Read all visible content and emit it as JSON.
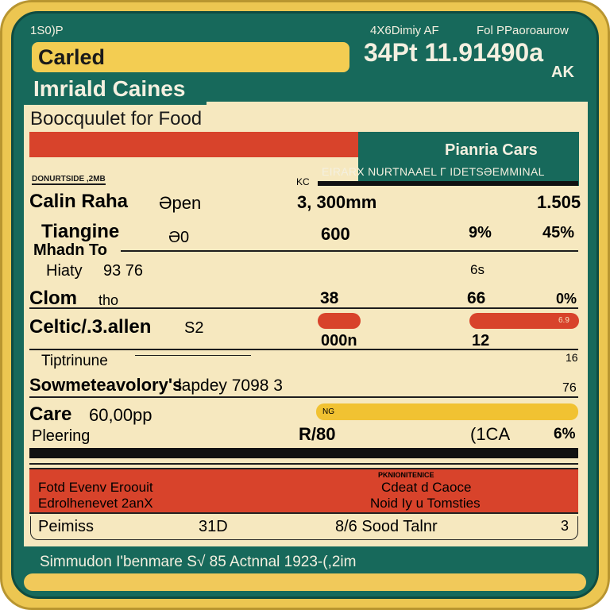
{
  "header": {
    "top_left": "1S0)P",
    "top_mid": "4X6Dimiy AF",
    "top_right": "Fol PPaoroaurow",
    "badge_label": "Carled",
    "big_number": "34Pt 11.91490a",
    "big_unit": "AK",
    "title": "Imriald Caines",
    "subtitle": "Boocquulet for Food"
  },
  "banner": {
    "title": "Pianria Cars",
    "subtitle": "EIRARX NURTNAAEL Γ IDETSƏEMMINAL"
  },
  "small_label": "DONURTSIDE ,2MB",
  "col_marker": "KC",
  "rows": [
    {
      "label": "Calin Raha",
      "extra": "Əpen",
      "c1": "3, 300mm",
      "c2": "",
      "c3": "1.505"
    },
    {
      "label": "Tiangine",
      "extra": "Ə0",
      "c1": "600",
      "c2": "9%",
      "c3": "45%"
    },
    {
      "label": "Mhadn To",
      "extra": "",
      "c1": "",
      "c2": "",
      "c3": ""
    },
    {
      "label": "Hiaty",
      "extra": "93 76",
      "c1": "",
      "c2": "6s",
      "c3": ""
    },
    {
      "label": "Clom",
      "extra": "tho",
      "c1": "38",
      "c2": "66",
      "c3": "0%"
    },
    {
      "label": "Celtic/.3.allen",
      "extra": "S2",
      "c1": "000n",
      "c2": "12",
      "c3": "",
      "pill_label": "6.9"
    },
    {
      "label": "Tiptrinune",
      "extra": "",
      "c1": "",
      "c2": "",
      "c3": "16"
    },
    {
      "label": "Sowmeteavolory's",
      "extra": "lapdey 7098 3",
      "c1": "",
      "c2": "",
      "c3": "76"
    },
    {
      "label": "Care",
      "extra": "60,00pp",
      "c1": "",
      "c2": "",
      "c3": "",
      "bar_label": "NG"
    },
    {
      "label": "Pleering",
      "extra": "",
      "c1": "R/80",
      "c2": "(1CA",
      "c3": "6%"
    }
  ],
  "red_band": {
    "left_line1": "Fotd Evenv Eroouit",
    "left_line2": "Edrolhenevet 2anX",
    "right_small": "PKNIONITENICE",
    "right_line1": "Cdeat d Caoce",
    "right_line2": "Noid Iy u Tomsties"
  },
  "summary": {
    "label": "Peimiss",
    "c1": "31D",
    "c2": "8/6 Sood Talnr",
    "c3": "3"
  },
  "footer": {
    "text": "Simmudon I'benmare S√ 85 Actnnal 1923-(,2im"
  },
  "colors": {
    "gold": "#ecc651",
    "teal": "#17695b",
    "cream": "#f6e8bf",
    "red": "#d8432b",
    "yellow": "#f1c232"
  }
}
